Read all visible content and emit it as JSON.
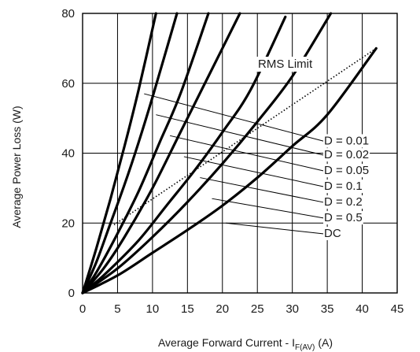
{
  "chart_data": {
    "type": "line",
    "xlabel": "Average Forward Current - I",
    "xlabel_sub": "F(AV)",
    "xlabel_unit": "(A)",
    "ylabel": "Average Power Loss (W)",
    "xlim": [
      0,
      45
    ],
    "ylim": [
      0,
      80
    ],
    "xticks": [
      0,
      5,
      10,
      15,
      20,
      25,
      30,
      35,
      40,
      45
    ],
    "yticks": [
      0,
      20,
      40,
      60,
      80
    ],
    "grid": true,
    "series": [
      {
        "name": "D = 0.01",
        "x": [
          0,
          2,
          4,
          6,
          8,
          10.5
        ],
        "y": [
          0,
          13,
          27,
          42,
          58,
          80
        ]
      },
      {
        "name": "D = 0.02",
        "x": [
          0,
          2,
          4,
          6,
          8,
          10,
          13.5
        ],
        "y": [
          0,
          9,
          20,
          31,
          43,
          56,
          80
        ]
      },
      {
        "name": "D = 0.05",
        "x": [
          0,
          2,
          5,
          8,
          11,
          14,
          18
        ],
        "y": [
          0,
          6,
          17,
          29,
          43,
          57,
          80
        ]
      },
      {
        "name": "D = 0.1",
        "x": [
          0,
          3,
          6,
          10,
          14,
          18,
          22.5
        ],
        "y": [
          0,
          7,
          16,
          30,
          46,
          62,
          80
        ]
      },
      {
        "name": "D = 0.2",
        "x": [
          0,
          3,
          8,
          12,
          16,
          20,
          24,
          29
        ],
        "y": [
          0,
          5,
          15,
          25,
          35,
          46,
          58,
          79
        ]
      },
      {
        "name": "D = 0.5",
        "x": [
          0,
          5,
          10,
          15,
          20,
          25,
          30,
          35.5
        ],
        "y": [
          0,
          7,
          16,
          26,
          37,
          49,
          62,
          80
        ]
      },
      {
        "name": "DC",
        "x": [
          0,
          5,
          10,
          15,
          20,
          25,
          30,
          35,
          42
        ],
        "y": [
          0,
          5,
          11.5,
          18,
          25,
          33,
          42,
          51,
          70
        ]
      }
    ],
    "rms_limit": {
      "name": "RMS Limit",
      "x": [
        4.5,
        42
      ],
      "y": [
        19.5,
        70
      ]
    },
    "annotations": [
      "D = 0.01",
      "D = 0.02",
      "D = 0.05",
      "D = 0.1",
      "D = 0.2",
      "D = 0.5",
      "DC"
    ],
    "rms_label": "RMS Limit"
  }
}
